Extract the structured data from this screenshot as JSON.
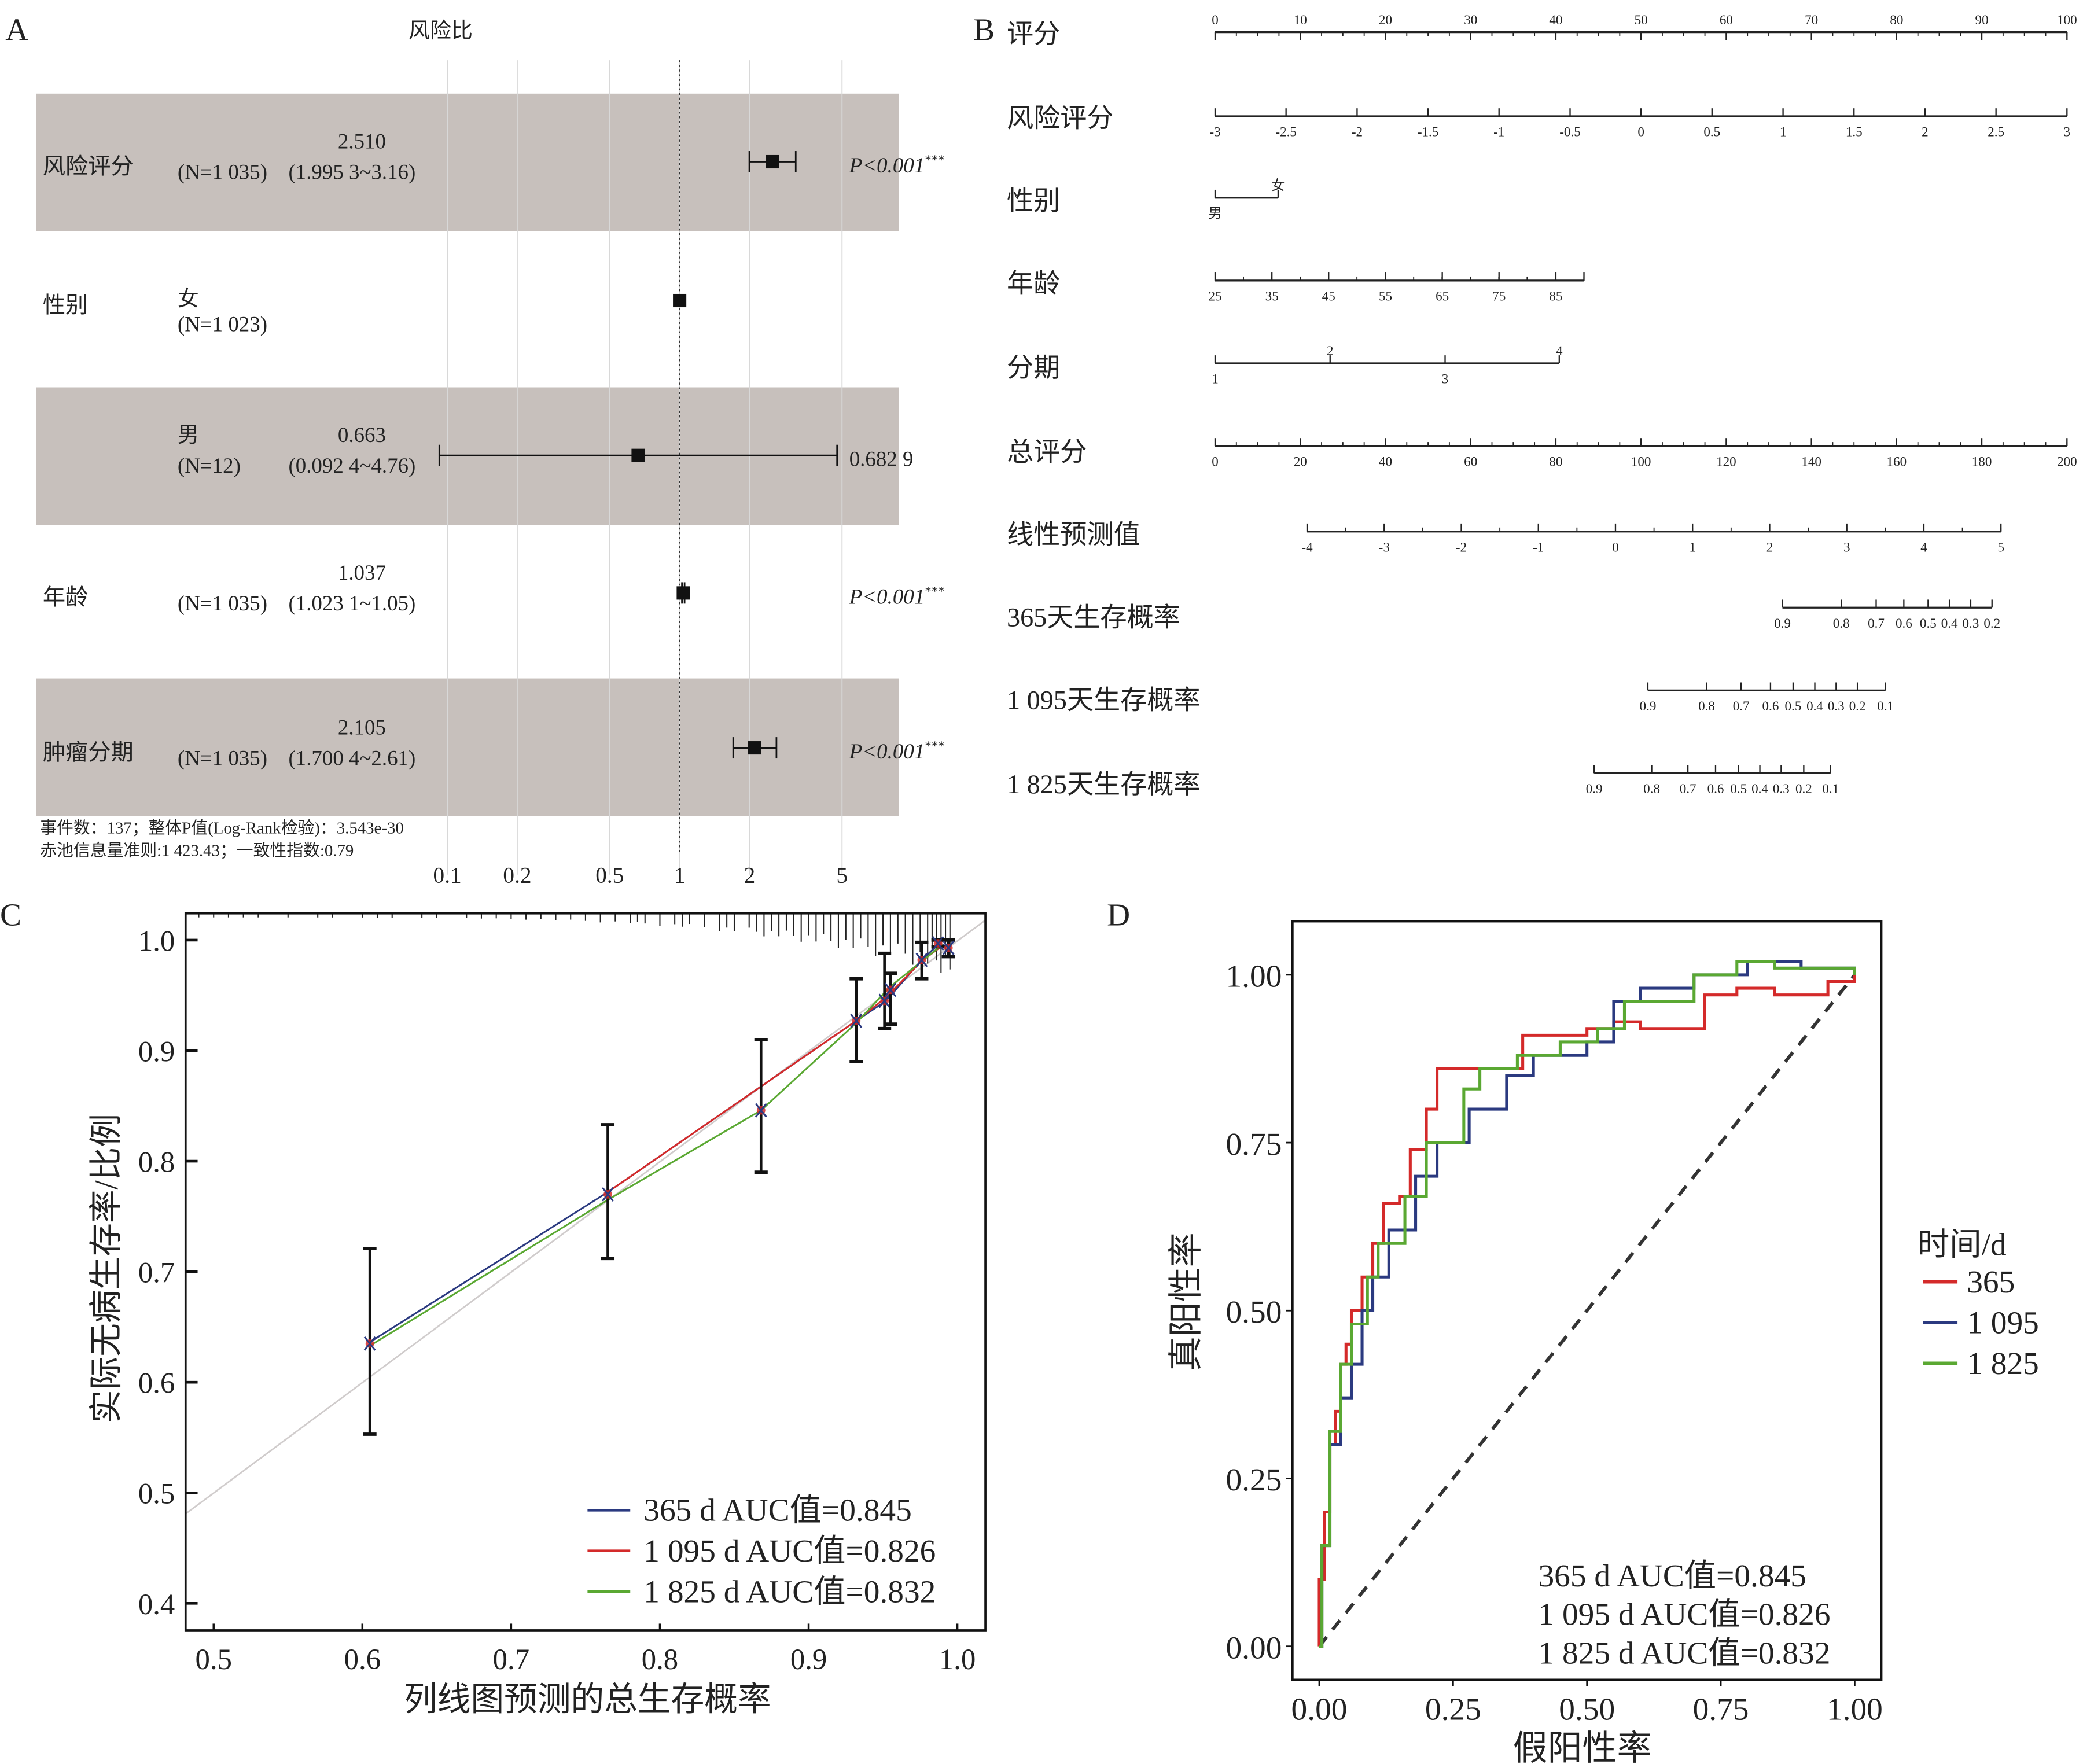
{
  "colors": {
    "band": "#c7c0bc",
    "grid": "#d8d8d8",
    "red": "#d42a2a",
    "blue": "#2b3a80",
    "green": "#5aa832",
    "diag": "#d0cccc"
  },
  "chart_data": [
    {
      "panel": "A",
      "type": "forest",
      "title": "风险比",
      "x_scale": "log",
      "xticks": [
        0.1,
        0.2,
        0.5,
        1,
        2,
        5
      ],
      "xtick_labels": [
        "0.1",
        "0.2",
        "0.5",
        "1",
        "2",
        "5"
      ],
      "reference": 1,
      "rows": [
        {
          "variable": "风险评分",
          "group": "",
          "n": "(N=1 035)",
          "hr_label": "2.510",
          "ci_label": "(1.995 3~3.16)",
          "hr": 2.51,
          "lo": 1.9953,
          "hi": 3.16,
          "p": "P<0.001",
          "stars": "***",
          "band": true
        },
        {
          "variable": "性别",
          "group": "女",
          "n": "(N=1 023)",
          "hr_label": "",
          "ci_label": "",
          "hr": 1,
          "lo": 1,
          "hi": 1,
          "p": "",
          "stars": "",
          "band": false
        },
        {
          "variable": "",
          "group": "男",
          "n": "(N=12)",
          "hr_label": "0.663",
          "ci_label": "(0.092 4~4.76)",
          "hr": 0.663,
          "lo": 0.0924,
          "hi": 4.76,
          "p": "0.682 9",
          "stars": "",
          "band": true
        },
        {
          "variable": "年龄",
          "group": "",
          "n": "(N=1 035)",
          "hr_label": "1.037",
          "ci_label": "(1.023 1~1.05)",
          "hr": 1.037,
          "lo": 1.0231,
          "hi": 1.05,
          "p": "P<0.001",
          "stars": "***",
          "band": false
        },
        {
          "variable": "肿瘤分期",
          "group": "",
          "n": "(N=1 035)",
          "hr_label": "2.105",
          "ci_label": "(1.700 4~2.61)",
          "hr": 2.105,
          "lo": 1.7004,
          "hi": 2.61,
          "p": "P<0.001",
          "stars": "***",
          "band": true
        }
      ],
      "footer": [
        "事件数：137；整体P值(Log-Rank检验)：3.543e-30",
        "赤池信息量准则:1 423.43；一致性指数:0.79"
      ]
    },
    {
      "panel": "B",
      "type": "nomogram",
      "rows": [
        {
          "label": "评分",
          "points_range": [
            0,
            100
          ],
          "ticks": [
            {
              "v": "0",
              "p": 0
            },
            {
              "v": "10",
              "p": 10
            },
            {
              "v": "20",
              "p": 20
            },
            {
              "v": "30",
              "p": 30
            },
            {
              "v": "40",
              "p": 40
            },
            {
              "v": "50",
              "p": 50
            },
            {
              "v": "60",
              "p": 60
            },
            {
              "v": "70",
              "p": 70
            },
            {
              "v": "80",
              "p": 80
            },
            {
              "v": "90",
              "p": 90
            },
            {
              "v": "100",
              "p": 100
            }
          ],
          "minor_step": 2.5,
          "scale": "points",
          "label_side": "above"
        },
        {
          "label": "风险评分",
          "ticks": [
            {
              "v": "-3",
              "p": 0
            },
            {
              "v": "-2.5",
              "p": 8.33
            },
            {
              "v": "-2",
              "p": 16.67
            },
            {
              "v": "-1.5",
              "p": 25
            },
            {
              "v": "-1",
              "p": 33.33
            },
            {
              "v": "-0.5",
              "p": 41.67
            },
            {
              "v": "0",
              "p": 50
            },
            {
              "v": "0.5",
              "p": 58.33
            },
            {
              "v": "1",
              "p": 66.67
            },
            {
              "v": "1.5",
              "p": 75
            },
            {
              "v": "2",
              "p": 83.33
            },
            {
              "v": "2.5",
              "p": 91.67
            },
            {
              "v": "3",
              "p": 100
            }
          ],
          "scale": "points",
          "label_side": "below"
        },
        {
          "label": "性别",
          "ticks": [
            {
              "v": "男",
              "p": 0,
              "side": "below"
            },
            {
              "v": "女",
              "p": 7.4,
              "side": "above"
            }
          ],
          "scale": "points",
          "label_side": "mixed"
        },
        {
          "label": "年龄",
          "ticks": [
            {
              "v": "25",
              "p": 0
            },
            {
              "v": "35",
              "p": 6.67
            },
            {
              "v": "45",
              "p": 13.33
            },
            {
              "v": "55",
              "p": 20
            },
            {
              "v": "65",
              "p": 26.67
            },
            {
              "v": "75",
              "p": 33.33
            },
            {
              "v": "85",
              "p": 40
            }
          ],
          "end_points": 43.3,
          "minor_step": 3.33,
          "scale": "points",
          "label_side": "below"
        },
        {
          "label": "分期",
          "ticks": [
            {
              "v": "1",
              "p": 0,
              "side": "below"
            },
            {
              "v": "2",
              "p": 13.5,
              "side": "above"
            },
            {
              "v": "3",
              "p": 27,
              "side": "below"
            },
            {
              "v": "4",
              "p": 40.4,
              "side": "above"
            }
          ],
          "scale": "points",
          "label_side": "mixed"
        },
        {
          "label": "总评分",
          "points_range": [
            0,
            200
          ],
          "ticks": [
            {
              "v": "0",
              "p": 0
            },
            {
              "v": "20",
              "p": 20
            },
            {
              "v": "40",
              "p": 40
            },
            {
              "v": "60",
              "p": 60
            },
            {
              "v": "80",
              "p": 80
            },
            {
              "v": "100",
              "p": 100
            },
            {
              "v": "120",
              "p": 120
            },
            {
              "v": "140",
              "p": 140
            },
            {
              "v": "160",
              "p": 160
            },
            {
              "v": "180",
              "p": 180
            },
            {
              "v": "200",
              "p": 200
            }
          ],
          "minor_step": 5,
          "scale": "total",
          "label_side": "below"
        },
        {
          "label": "线性预测值",
          "ticks": [
            {
              "v": "-4",
              "p": 21.6
            },
            {
              "v": "-3",
              "p": 39.7
            },
            {
              "v": "-2",
              "p": 57.8
            },
            {
              "v": "-1",
              "p": 75.9
            },
            {
              "v": "0",
              "p": 94
            },
            {
              "v": "1",
              "p": 112.1
            },
            {
              "v": "2",
              "p": 130.2
            },
            {
              "v": "3",
              "p": 148.3
            },
            {
              "v": "4",
              "p": 166.4
            },
            {
              "v": "5",
              "p": 184.5
            }
          ],
          "minor_step": 9.05,
          "scale": "total",
          "label_side": "below"
        },
        {
          "label": "365天生存概率",
          "ticks": [
            {
              "v": "0.9",
              "p": 133.2
            },
            {
              "v": "0.8",
              "p": 147
            },
            {
              "v": "0.7",
              "p": 155.2
            },
            {
              "v": "0.6",
              "p": 161.7
            },
            {
              "v": "0.5",
              "p": 167.4
            },
            {
              "v": "0.4",
              "p": 172.4
            },
            {
              "v": "0.3",
              "p": 177.4
            },
            {
              "v": "0.2",
              "p": 182.4
            }
          ],
          "scale": "total",
          "label_side": "below"
        },
        {
          "label": "1 095天生存概率",
          "ticks": [
            {
              "v": "0.9",
              "p": 101.6
            },
            {
              "v": "0.8",
              "p": 115.4
            },
            {
              "v": "0.7",
              "p": 123.5
            },
            {
              "v": "0.6",
              "p": 130.4
            },
            {
              "v": "0.5",
              "p": 135.7
            },
            {
              "v": "0.4",
              "p": 140.8
            },
            {
              "v": "0.3",
              "p": 145.8
            },
            {
              "v": "0.2",
              "p": 150.8
            },
            {
              "v": "0.1",
              "p": 157.4
            }
          ],
          "scale": "total",
          "label_side": "below"
        },
        {
          "label": "1 825天生存概率",
          "ticks": [
            {
              "v": "0.9",
              "p": 89
            },
            {
              "v": "0.8",
              "p": 102.5
            },
            {
              "v": "0.7",
              "p": 111
            },
            {
              "v": "0.6",
              "p": 117.5
            },
            {
              "v": "0.5",
              "p": 122.9
            },
            {
              "v": "0.4",
              "p": 127.9
            },
            {
              "v": "0.3",
              "p": 132.9
            },
            {
              "v": "0.2",
              "p": 138.2
            },
            {
              "v": "0.1",
              "p": 144.5
            }
          ],
          "scale": "total",
          "label_side": "below"
        }
      ]
    },
    {
      "panel": "C",
      "type": "line",
      "xlabel": "列线图预测的总生存概率",
      "ylabel": "实际无病生存率/比例",
      "xlim": [
        0.48,
        1.02
      ],
      "ylim": [
        0.38,
        1.024
      ],
      "xticks": [
        "0.5",
        "0.6",
        "0.7",
        "0.8",
        "0.9",
        "1.0"
      ],
      "yticks": [
        "0.4",
        "0.5",
        "0.6",
        "0.7",
        "0.8",
        "0.9",
        "1.0"
      ],
      "reference_line": "y=x",
      "error_bars": [
        {
          "x": 0.605,
          "y": 0.635,
          "lo": 0.553,
          "hi": 0.721
        },
        {
          "x": 0.765,
          "y": 0.77,
          "lo": 0.712,
          "hi": 0.833
        },
        {
          "x": 0.868,
          "y": 0.846,
          "lo": 0.79,
          "hi": 0.91
        },
        {
          "x": 0.932,
          "y": 0.927,
          "lo": 0.89,
          "hi": 0.965
        },
        {
          "x": 0.951,
          "y": 0.945,
          "lo": 0.92,
          "hi": 0.988
        },
        {
          "x": 0.955,
          "y": 0.955,
          "lo": 0.924,
          "hi": 0.97
        },
        {
          "x": 0.976,
          "y": 0.982,
          "lo": 0.965,
          "hi": 0.998
        },
        {
          "x": 0.987,
          "y": 0.997,
          "lo": 0.994,
          "hi": 1.0
        },
        {
          "x": 0.994,
          "y": 0.993,
          "lo": 0.985,
          "hi": 1.0
        }
      ],
      "series": [
        {
          "name": "365 d AUC值=0.845",
          "color": "blue",
          "x": [
            0.607,
            0.765,
            0.932,
            0.952,
            0.976,
            0.988,
            0.995
          ],
          "y": [
            0.638,
            0.772,
            0.927,
            0.945,
            0.982,
            0.997,
            0.993
          ]
        },
        {
          "name": "1 095 d AUC值=0.826",
          "color": "red",
          "x": [
            0.765,
            0.932,
            0.952,
            0.976,
            0.99
          ],
          "y": [
            0.772,
            0.927,
            0.948,
            0.981,
            0.995
          ]
        },
        {
          "name": "1 825 d AUC值=0.832",
          "color": "green",
          "x": [
            0.605,
            0.765,
            0.868,
            0.932,
            0.955,
            0.99
          ],
          "y": [
            0.633,
            0.765,
            0.846,
            0.925,
            0.958,
            0.996
          ]
        }
      ],
      "rug": [
        0.49,
        0.5,
        0.51,
        0.52,
        0.53,
        0.55,
        0.57,
        0.58,
        0.6,
        0.61,
        0.62,
        0.64,
        0.65,
        0.67,
        0.68,
        0.69,
        0.7,
        0.71,
        0.72,
        0.73,
        0.74,
        0.75,
        0.76,
        0.77,
        0.78,
        0.785,
        0.79,
        0.8,
        0.81,
        0.815,
        0.82,
        0.83,
        0.84,
        0.845,
        0.85,
        0.86,
        0.865,
        0.87,
        0.875,
        0.88,
        0.885,
        0.89,
        0.895,
        0.9,
        0.905,
        0.91,
        0.915,
        0.92,
        0.925,
        0.93,
        0.935,
        0.94,
        0.945,
        0.95,
        0.955,
        0.96,
        0.965,
        0.97,
        0.975,
        0.98,
        0.983,
        0.986,
        0.989,
        0.992,
        0.995
      ],
      "legend": "bottom-right"
    },
    {
      "panel": "D",
      "type": "line",
      "xlabel": "假阳性率",
      "ylabel": "真阳性率",
      "xlim": [
        -0.05,
        1.05
      ],
      "ylim": [
        -0.05,
        1.08
      ],
      "xticks": [
        "0.00",
        "0.25",
        "0.50",
        "0.75",
        "1.00"
      ],
      "yticks": [
        "0.00",
        "0.25",
        "0.50",
        "0.75",
        "1.00"
      ],
      "legend_title": "时间/d",
      "legend_entries": [
        "365",
        "1 095",
        "1 825"
      ],
      "auc_text": [
        "365 d AUC值=0.845",
        "1 095 d AUC值=0.826",
        "1 825 d AUC值=0.832"
      ],
      "series": [
        {
          "name": "365",
          "color": "red",
          "x": [
            0,
            0,
            0.01,
            0.02,
            0.03,
            0.04,
            0.05,
            0.06,
            0.08,
            0.1,
            0.12,
            0.15,
            0.17,
            0.2,
            0.22,
            0.28,
            0.37,
            0.38,
            0.5,
            0.55,
            0.6,
            0.71,
            0.72,
            0.78,
            0.85,
            0.95,
            1
          ],
          "y": [
            0,
            0.1,
            0.2,
            0.3,
            0.35,
            0.42,
            0.45,
            0.5,
            0.55,
            0.6,
            0.66,
            0.67,
            0.74,
            0.8,
            0.86,
            0.86,
            0.86,
            0.91,
            0.92,
            0.93,
            0.92,
            0.92,
            0.97,
            0.98,
            0.97,
            0.99,
            1
          ]
        },
        {
          "name": "1 095",
          "color": "blue",
          "x": [
            0,
            0.005,
            0.02,
            0.04,
            0.06,
            0.08,
            0.1,
            0.13,
            0.18,
            0.22,
            0.28,
            0.35,
            0.4,
            0.5,
            0.55,
            0.6,
            0.7,
            0.8,
            0.9,
            1
          ],
          "y": [
            0,
            0.15,
            0.3,
            0.37,
            0.42,
            0.5,
            0.55,
            0.62,
            0.7,
            0.75,
            0.8,
            0.85,
            0.88,
            0.9,
            0.96,
            0.98,
            1.0,
            1.02,
            1.01,
            1
          ]
        },
        {
          "name": "1 825",
          "color": "green",
          "x": [
            0,
            0.005,
            0.02,
            0.04,
            0.06,
            0.09,
            0.11,
            0.16,
            0.2,
            0.27,
            0.3,
            0.37,
            0.45,
            0.52,
            0.57,
            0.7,
            0.78,
            0.85,
            0.95,
            1
          ],
          "y": [
            0,
            0.15,
            0.32,
            0.42,
            0.48,
            0.55,
            0.6,
            0.67,
            0.75,
            0.83,
            0.86,
            0.88,
            0.9,
            0.92,
            0.96,
            1.0,
            1.02,
            1.01,
            1.01,
            1
          ]
        }
      ]
    }
  ],
  "panels": {
    "a": "A",
    "b": "B",
    "c": "C",
    "d": "D"
  }
}
